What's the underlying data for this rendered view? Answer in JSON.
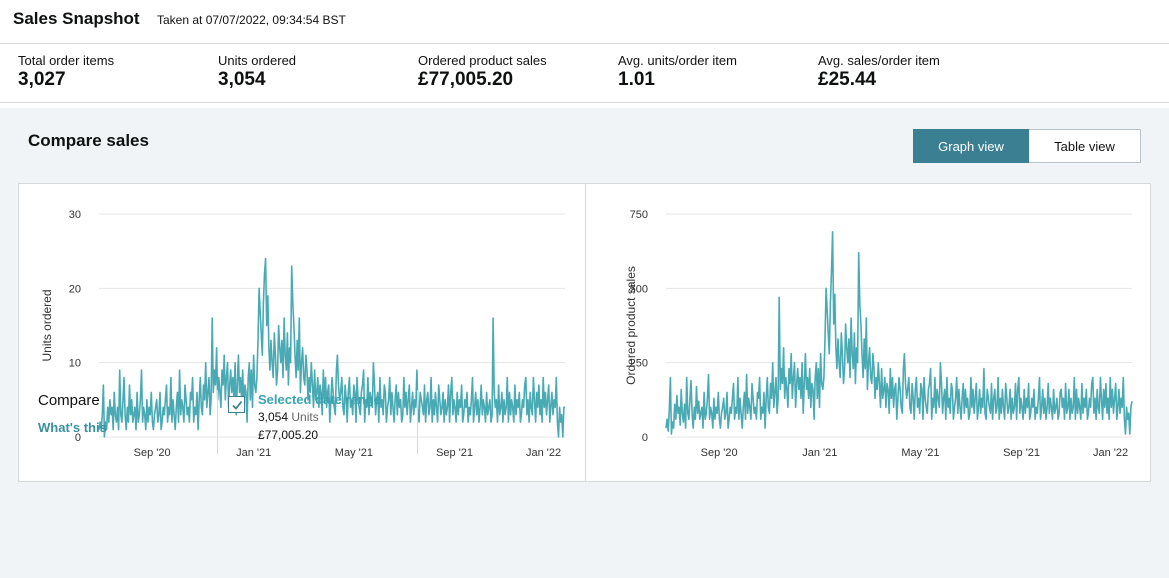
{
  "snapshot": {
    "title": "Sales Snapshot",
    "taken": "Taken at 07/07/2022, 09:34:54 BST"
  },
  "metrics": [
    {
      "label": "Total order items",
      "value": "3,027"
    },
    {
      "label": "Units ordered",
      "value": "3,054"
    },
    {
      "label": "Ordered product sales",
      "value": "£77,005.20"
    },
    {
      "label": "Avg. units/order item",
      "value": "1.01"
    },
    {
      "label": "Avg. sales/order item",
      "value": "£25.44"
    }
  ],
  "compare": {
    "title": "Compare sales",
    "graph_view_label": "Graph view",
    "table_view_label": "Table view",
    "compare_label": "Compare",
    "whats_this": "What's this",
    "selected_label": "Selected date range",
    "selected_units_value": "3,054",
    "selected_units_unit": "Units",
    "selected_sales": "£77,005.20"
  },
  "colors": {
    "line": "#4aaab4",
    "accent": "#3a7f92",
    "link": "#3a8fa1"
  },
  "chart_data": [
    {
      "type": "line",
      "title": "",
      "xlabel": "",
      "ylabel": "Units ordered",
      "ylim": [
        0,
        30
      ],
      "yticks": [
        0,
        10,
        20,
        30
      ],
      "xticks": [
        "Sep '20",
        "Jan '21",
        "May '21",
        "Sep '21",
        "Jan '22"
      ],
      "grid": true,
      "x_range": [
        "2020-07-12",
        "2022-01-12"
      ],
      "series": [
        {
          "values": [
            1,
            2,
            1,
            3,
            7,
            0,
            2,
            1,
            4,
            2,
            5,
            3,
            4,
            1,
            6,
            3,
            2,
            4,
            1,
            9,
            3,
            2,
            5,
            8,
            3,
            1,
            4,
            2,
            7,
            3,
            5,
            2,
            3,
            4,
            1,
            6,
            2,
            3,
            5,
            9,
            2,
            4,
            3,
            1,
            5,
            2,
            4,
            3,
            6,
            2,
            1,
            3,
            4,
            5,
            2,
            3,
            6,
            1,
            2,
            4,
            3,
            5,
            7,
            2,
            4,
            3,
            8,
            2,
            5,
            3,
            1,
            4,
            6,
            2,
            9,
            3,
            5,
            4,
            2,
            7,
            5,
            3,
            4,
            2,
            6,
            5,
            8,
            2,
            4,
            3,
            6,
            1,
            5,
            8,
            4,
            3,
            7,
            5,
            10,
            4,
            6,
            8,
            3,
            5,
            16,
            6,
            9,
            7,
            12,
            5,
            8,
            6,
            4,
            9,
            7,
            11,
            5,
            8,
            10,
            4,
            7,
            9,
            6,
            8,
            5,
            10,
            3,
            7,
            11,
            6,
            8,
            5,
            9,
            4,
            7,
            6,
            2,
            8,
            10,
            5,
            9,
            4,
            11,
            7,
            6,
            8,
            13,
            20,
            17,
            14,
            11,
            18,
            22,
            24,
            15,
            19,
            12,
            9,
            13,
            10,
            8,
            14,
            11,
            7,
            9,
            15,
            12,
            10,
            13,
            8,
            16,
            11,
            9,
            14,
            7,
            12,
            10,
            23,
            18,
            15,
            11,
            8,
            13,
            9,
            16,
            6,
            10,
            12,
            8,
            7,
            11,
            9,
            5,
            8,
            6,
            10,
            7,
            4,
            9,
            5,
            6,
            8,
            4,
            7,
            6,
            3,
            9,
            5,
            8,
            4,
            6,
            7,
            2,
            5,
            8,
            6,
            4,
            3,
            9,
            11,
            7,
            5,
            6,
            8,
            4,
            3,
            7,
            5,
            2,
            6,
            8,
            4,
            5,
            3,
            7,
            6,
            2,
            8,
            5,
            4,
            3,
            6,
            7,
            9,
            2,
            5,
            4,
            8,
            3,
            6,
            5,
            4,
            10,
            7,
            3,
            5,
            6,
            2,
            8,
            4,
            5,
            3,
            7,
            6,
            2,
            4,
            5,
            8,
            3,
            6,
            4,
            2,
            5,
            7,
            3,
            6,
            4,
            5,
            2,
            3,
            8,
            4,
            6,
            3,
            5,
            7,
            2,
            4,
            6,
            3,
            5,
            4,
            9,
            3,
            2,
            6,
            5,
            4,
            3,
            7,
            2,
            5,
            6,
            3,
            4,
            8,
            2,
            5,
            3,
            6,
            4,
            2,
            7,
            5,
            3,
            4,
            6,
            2,
            5,
            3,
            4,
            7,
            2,
            6,
            8,
            3,
            5,
            4,
            2,
            6,
            3,
            5,
            4,
            7,
            2,
            3,
            5,
            4,
            6,
            2,
            4,
            3,
            5,
            8,
            2,
            4,
            6,
            3,
            5,
            2,
            4,
            7,
            3,
            5,
            4,
            2,
            6,
            3,
            4,
            5,
            2,
            3,
            16,
            6,
            4,
            5,
            2,
            7,
            3,
            4,
            6,
            2,
            5,
            3,
            4,
            8,
            2,
            6,
            3,
            5,
            4,
            2,
            7,
            3,
            5,
            4,
            6,
            2,
            3,
            5,
            4,
            7,
            8,
            3,
            5,
            2,
            6,
            4,
            3,
            8,
            5,
            2,
            6,
            4,
            7,
            3,
            5,
            2,
            8,
            4,
            6,
            3,
            5,
            7,
            2,
            4,
            6,
            3,
            5,
            4,
            8,
            2,
            0,
            4,
            2,
            3,
            0,
            4,
            4
          ]
        }
      ]
    },
    {
      "type": "line",
      "title": "",
      "xlabel": "",
      "ylabel": "Ordered product sales",
      "ylim": [
        0,
        750
      ],
      "yticks": [
        0,
        250,
        500,
        750
      ],
      "xticks": [
        "Sep '20",
        "Jan '21",
        "May '21",
        "Sep '21",
        "Jan '22"
      ],
      "grid": true,
      "x_range": [
        "2020-07-12",
        "2022-01-12"
      ],
      "series": [
        {
          "values": [
            30,
            60,
            20,
            90,
            200,
            10,
            50,
            30,
            110,
            60,
            140,
            80,
            100,
            40,
            160,
            80,
            50,
            110,
            30,
            200,
            80,
            60,
            130,
            190,
            80,
            30,
            100,
            60,
            170,
            80,
            120,
            60,
            80,
            100,
            30,
            150,
            60,
            80,
            130,
            210,
            60,
            100,
            80,
            30,
            130,
            60,
            100,
            80,
            150,
            60,
            30,
            80,
            100,
            130,
            60,
            80,
            150,
            30,
            60,
            100,
            80,
            130,
            180,
            60,
            100,
            80,
            200,
            60,
            130,
            80,
            30,
            100,
            150,
            60,
            210,
            80,
            130,
            100,
            60,
            180,
            130,
            80,
            100,
            60,
            150,
            130,
            200,
            60,
            100,
            80,
            150,
            30,
            130,
            200,
            100,
            80,
            180,
            130,
            250,
            100,
            150,
            200,
            80,
            130,
            470,
            160,
            230,
            180,
            300,
            130,
            200,
            160,
            100,
            230,
            180,
            280,
            130,
            200,
            250,
            100,
            180,
            230,
            160,
            200,
            130,
            250,
            80,
            180,
            280,
            160,
            200,
            130,
            230,
            100,
            180,
            160,
            60,
            200,
            250,
            130,
            230,
            100,
            280,
            180,
            160,
            200,
            330,
            500,
            430,
            350,
            280,
            450,
            560,
            690,
            380,
            480,
            300,
            230,
            330,
            250,
            200,
            350,
            280,
            180,
            230,
            380,
            300,
            250,
            330,
            200,
            400,
            280,
            230,
            350,
            180,
            300,
            250,
            620,
            450,
            380,
            280,
            200,
            330,
            230,
            400,
            160,
            250,
            300,
            200,
            180,
            280,
            230,
            130,
            200,
            160,
            250,
            180,
            100,
            230,
            130,
            160,
            200,
            100,
            180,
            160,
            80,
            230,
            130,
            200,
            100,
            160,
            180,
            60,
            130,
            200,
            160,
            100,
            80,
            230,
            280,
            180,
            130,
            160,
            200,
            100,
            80,
            180,
            130,
            60,
            160,
            200,
            100,
            130,
            80,
            180,
            160,
            60,
            200,
            130,
            100,
            80,
            160,
            180,
            230,
            60,
            130,
            100,
            200,
            80,
            160,
            130,
            100,
            250,
            180,
            80,
            130,
            160,
            60,
            200,
            100,
            130,
            80,
            180,
            160,
            60,
            100,
            130,
            200,
            80,
            160,
            100,
            60,
            130,
            180,
            80,
            160,
            100,
            130,
            60,
            80,
            200,
            100,
            160,
            80,
            130,
            180,
            60,
            100,
            160,
            80,
            130,
            100,
            230,
            80,
            60,
            160,
            130,
            100,
            80,
            180,
            60,
            130,
            160,
            80,
            100,
            200,
            60,
            130,
            80,
            160,
            100,
            60,
            180,
            130,
            80,
            100,
            160,
            60,
            130,
            80,
            100,
            180,
            60,
            160,
            200,
            80,
            130,
            100,
            60,
            160,
            80,
            130,
            100,
            180,
            60,
            80,
            130,
            100,
            160,
            60,
            100,
            80,
            130,
            200,
            60,
            100,
            160,
            80,
            130,
            60,
            100,
            180,
            80,
            130,
            100,
            60,
            160,
            80,
            100,
            130,
            60,
            80,
            150,
            160,
            100,
            130,
            60,
            180,
            80,
            100,
            160,
            60,
            130,
            80,
            100,
            200,
            60,
            160,
            80,
            130,
            100,
            60,
            180,
            80,
            130,
            100,
            160,
            60,
            80,
            130,
            100,
            180,
            200,
            80,
            130,
            60,
            160,
            100,
            80,
            200,
            130,
            60,
            160,
            100,
            180,
            80,
            130,
            60,
            200,
            100,
            160,
            80,
            130,
            180,
            60,
            100,
            160,
            80,
            130,
            100,
            200,
            60,
            10,
            100,
            60,
            80,
            10,
            100,
            120
          ]
        }
      ]
    }
  ]
}
